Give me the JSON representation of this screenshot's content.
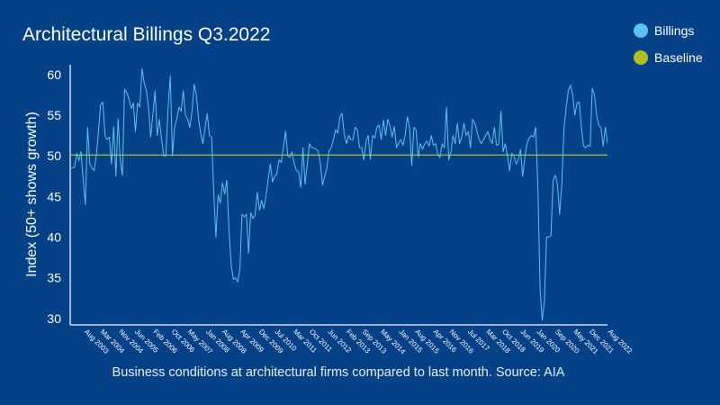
{
  "chart_data": {
    "type": "line",
    "title": "Architectural Billings Q3.2022",
    "ylabel": "Index (50+ shows growth)",
    "caption": "Business conditions at architectural firms compared to last month. Source: AIA",
    "ylim": [
      29.2,
      61.2
    ],
    "yticks": [
      30,
      35,
      40,
      45,
      50,
      55,
      60
    ],
    "x_tick_labels": [
      "Aug 2003",
      "Mar 2004",
      "Nov 2004",
      "Jun 2005",
      "Feb 2006",
      "Oct 2006",
      "May 2007",
      "Jan 2008",
      "Aug 2008",
      "Apr 2009",
      "Dec 2009",
      "Jul 2010",
      "Mar 2011",
      "Oct 2011",
      "Jun 2012",
      "Feb 2013",
      "Sep 2013",
      "May 2014",
      "Jan 2015",
      "Aug 2015",
      "Apr 2016",
      "Nov 2016",
      "Jul 2017",
      "Mar 2018",
      "Oct 2018",
      "Jun 2019",
      "Jan 2020",
      "Sep 2020",
      "May 2021",
      "Dec 2021",
      "Aug 2022"
    ],
    "x_start": "2003-02",
    "x_end": "2022-08",
    "series": [
      {
        "name": "Billings",
        "color": "#5bc4ee",
        "values": [
          48.5,
          48.5,
          48.6,
          50.3,
          49.4,
          50.5,
          47,
          44,
          53.5,
          49,
          48.5,
          48.2,
          50,
          53,
          56.3,
          56.6,
          52.5,
          52,
          52.3,
          49,
          53.6,
          47.5,
          54.6,
          49.5,
          47.6,
          58.2,
          57.8,
          57,
          55.8,
          56.5,
          53,
          56.5,
          56,
          60.7,
          59,
          58,
          56,
          52.3,
          55,
          58,
          52.5,
          54.5,
          52,
          50,
          50,
          56,
          59.8,
          50,
          53.5,
          54.5,
          56,
          55.5,
          58,
          55,
          54.5,
          53.5,
          55.5,
          58.8,
          57.5,
          54.5,
          52.8,
          51.5,
          53.5,
          55.2,
          52.5,
          52.3,
          45.5,
          40,
          45.2,
          44.2,
          46.7,
          45.3,
          47,
          41,
          36.5,
          34.8,
          35,
          34.5,
          36,
          42.8,
          42.5,
          42.8,
          38,
          43,
          42.3,
          42.7,
          45.5,
          43.3,
          44.5,
          43.5,
          45,
          47,
          49,
          46.8,
          47.5,
          47.8,
          49.5,
          49.2,
          51,
          53,
          50,
          49.8,
          50.5,
          49,
          48.2,
          48,
          46.1,
          51,
          46.5,
          49,
          51.5,
          51,
          51,
          50.8,
          50.6,
          49,
          46.4,
          47.5,
          48.5,
          50.6,
          51,
          52,
          53.2,
          52.8,
          54.8,
          55.2,
          52.7,
          51.5,
          52.5,
          52,
          52,
          53.5,
          53.2,
          51,
          51,
          49.5,
          51.8,
          52.5,
          49.6,
          52.5,
          52.2,
          53.5,
          53.8,
          52,
          54.4,
          52.5,
          54.5,
          53.7,
          52.3,
          53.6,
          51,
          51.6,
          52,
          51.3,
          52.6,
          54.8,
          53.5,
          48.8,
          53.5,
          53.2,
          49.9,
          51.5,
          50.8,
          51.5,
          51.8,
          51.2,
          52.5,
          51.3,
          51.5,
          50.1,
          49.8,
          51.5,
          51,
          56,
          49.5,
          50.5,
          52.5,
          51.5,
          54,
          51.5,
          52.3,
          54,
          52.5,
          53,
          51,
          54.5,
          54,
          53,
          52,
          51.5,
          52,
          52.5,
          53,
          52,
          51.5,
          53.5,
          51.3,
          51.4,
          55.5,
          50.5,
          51.5,
          50,
          48.2,
          50.3,
          50,
          49,
          49.5,
          50.8,
          47.5,
          49.8,
          51.5,
          52.2,
          52.5,
          52.3,
          53.5,
          46,
          33.5,
          29.8,
          32.1,
          40,
          40,
          40.2,
          47,
          47.6,
          46.5,
          42.8,
          46.5,
          53.4,
          56,
          58,
          58.7,
          57.5,
          55,
          56.5,
          56.6,
          53.5,
          51.2,
          51,
          51.3,
          51.2,
          58.3,
          57.5,
          55,
          53.7,
          53.5,
          51.2,
          53.5,
          51.6
        ]
      },
      {
        "name": "Baseline",
        "color": "#b5bd1c",
        "values": [
          50.1,
          50.1
        ]
      }
    ],
    "legend": "top-right",
    "grid": false
  }
}
